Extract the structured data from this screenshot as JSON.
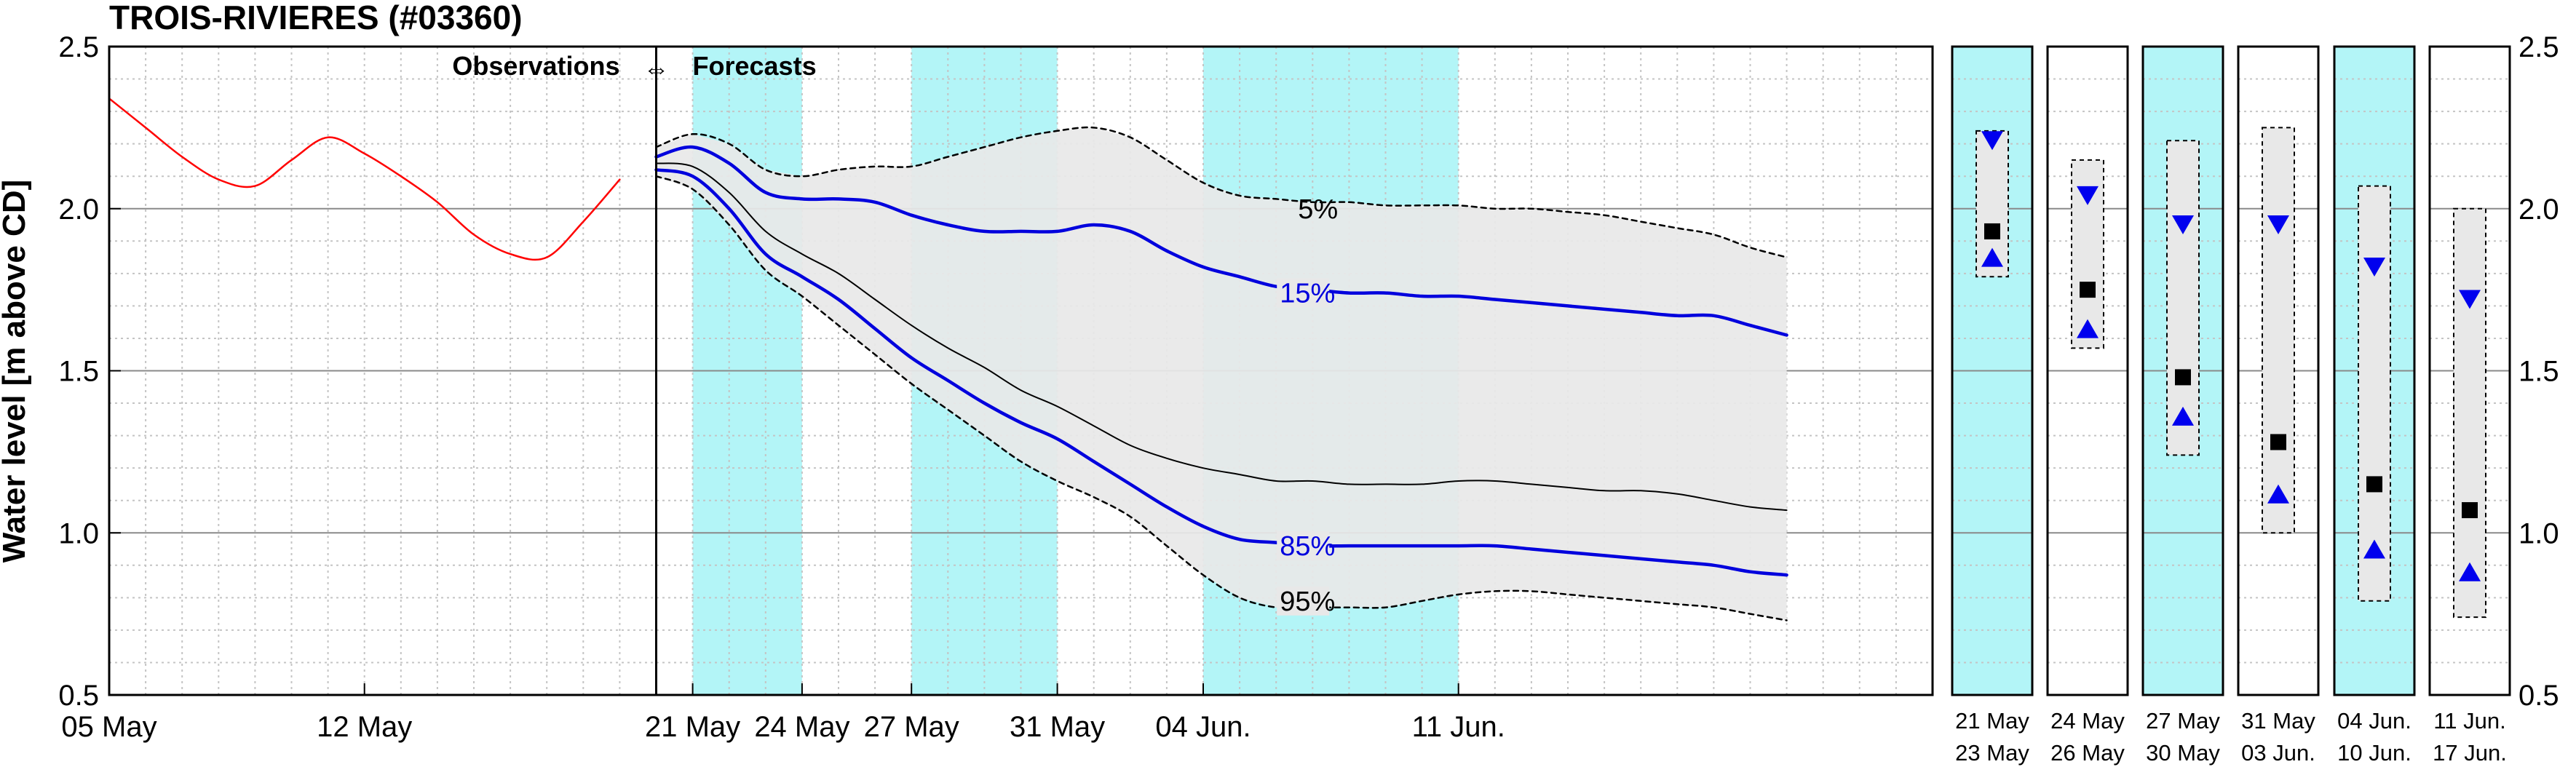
{
  "chart_data": {
    "type": "line",
    "title": "TROIS-RIVIERES (#03360)",
    "ylabel": "Water level [m above CD]",
    "ylim": [
      0.5,
      2.5
    ],
    "yticks": [
      "0.5",
      "1.0",
      "1.5",
      "2.0",
      "2.5"
    ],
    "ytick_values": [
      0.5,
      1.0,
      1.5,
      2.0,
      2.5
    ],
    "x_unit": "days since 05 May",
    "xlim": [
      0,
      50
    ],
    "xticks": [
      {
        "x": 0,
        "label": "05 May"
      },
      {
        "x": 7,
        "label": "12 May"
      },
      {
        "x": 16,
        "label": "21 May"
      },
      {
        "x": 19,
        "label": "24 May"
      },
      {
        "x": 22,
        "label": "27 May"
      },
      {
        "x": 26,
        "label": "31 May"
      },
      {
        "x": 30,
        "label": "04 Jun."
      },
      {
        "x": 37,
        "label": "11 Jun."
      }
    ],
    "obs_forecast_divider_x": 15,
    "annotation": {
      "left": "Observations",
      "arrow": "⇔",
      "right": "Forecasts"
    },
    "shaded_periods": [
      [
        16,
        19
      ],
      [
        22,
        26
      ],
      [
        30,
        37
      ]
    ],
    "colors": {
      "observations": "#ff0000",
      "percentile_15_85": "#0000dd",
      "median": "#000000",
      "band_fill": "#e8e8e8",
      "period_shade": "#b3f5f7",
      "marker_up_down": "#0000ee",
      "marker_square": "#000000"
    },
    "series": [
      {
        "name": "Observations",
        "x": [
          0,
          1,
          2,
          3,
          4,
          5,
          6,
          7,
          8,
          9,
          10,
          11,
          12,
          13,
          14
        ],
        "values": [
          2.34,
          2.25,
          2.16,
          2.09,
          2.07,
          2.15,
          2.22,
          2.17,
          2.1,
          2.02,
          1.92,
          1.86,
          1.85,
          1.96,
          2.09
        ]
      },
      {
        "name": "5%",
        "x": [
          15,
          16,
          17,
          18,
          19,
          20,
          21,
          22,
          23,
          24,
          25,
          26,
          27,
          28,
          29,
          30,
          31,
          32,
          33,
          34,
          35,
          36,
          37,
          38,
          39,
          40,
          41,
          42,
          43,
          44,
          45,
          46
        ],
        "values": [
          2.19,
          2.23,
          2.2,
          2.12,
          2.1,
          2.12,
          2.13,
          2.13,
          2.16,
          2.19,
          2.22,
          2.24,
          2.25,
          2.22,
          2.15,
          2.08,
          2.04,
          2.03,
          2.02,
          2.02,
          2.01,
          2.01,
          2.01,
          2.0,
          2.0,
          1.99,
          1.98,
          1.96,
          1.94,
          1.92,
          1.88,
          1.85
        ]
      },
      {
        "name": "15%",
        "x": [
          15,
          16,
          17,
          18,
          19,
          20,
          21,
          22,
          23,
          24,
          25,
          26,
          27,
          28,
          29,
          30,
          31,
          32,
          33,
          34,
          35,
          36,
          37,
          38,
          39,
          40,
          41,
          42,
          43,
          44,
          45,
          46
        ],
        "values": [
          2.16,
          2.19,
          2.14,
          2.05,
          2.03,
          2.03,
          2.02,
          1.98,
          1.95,
          1.93,
          1.93,
          1.93,
          1.95,
          1.93,
          1.87,
          1.82,
          1.79,
          1.76,
          1.75,
          1.74,
          1.74,
          1.73,
          1.73,
          1.72,
          1.71,
          1.7,
          1.69,
          1.68,
          1.67,
          1.67,
          1.64,
          1.61
        ]
      },
      {
        "name": "Median",
        "x": [
          15,
          16,
          17,
          18,
          19,
          20,
          21,
          22,
          23,
          24,
          25,
          26,
          27,
          28,
          29,
          30,
          31,
          32,
          33,
          34,
          35,
          36,
          37,
          38,
          39,
          40,
          41,
          42,
          43,
          44,
          45,
          46
        ],
        "values": [
          2.14,
          2.13,
          2.05,
          1.93,
          1.86,
          1.8,
          1.72,
          1.64,
          1.57,
          1.51,
          1.44,
          1.39,
          1.33,
          1.27,
          1.23,
          1.2,
          1.18,
          1.16,
          1.16,
          1.15,
          1.15,
          1.15,
          1.16,
          1.16,
          1.15,
          1.14,
          1.13,
          1.13,
          1.12,
          1.1,
          1.08,
          1.07
        ]
      },
      {
        "name": "85%",
        "x": [
          15,
          16,
          17,
          18,
          19,
          20,
          21,
          22,
          23,
          24,
          25,
          26,
          27,
          28,
          29,
          30,
          31,
          32,
          33,
          34,
          35,
          36,
          37,
          38,
          39,
          40,
          41,
          42,
          43,
          44,
          45,
          46
        ],
        "values": [
          2.12,
          2.1,
          2.0,
          1.86,
          1.79,
          1.72,
          1.63,
          1.54,
          1.47,
          1.4,
          1.34,
          1.29,
          1.22,
          1.15,
          1.08,
          1.02,
          0.98,
          0.97,
          0.96,
          0.96,
          0.96,
          0.96,
          0.96,
          0.96,
          0.95,
          0.94,
          0.93,
          0.92,
          0.91,
          0.9,
          0.88,
          0.87
        ]
      },
      {
        "name": "95%",
        "x": [
          15,
          16,
          17,
          18,
          19,
          20,
          21,
          22,
          23,
          24,
          25,
          26,
          27,
          28,
          29,
          30,
          31,
          32,
          33,
          34,
          35,
          36,
          37,
          38,
          39,
          40,
          41,
          42,
          43,
          44,
          45,
          46
        ],
        "values": [
          2.1,
          2.06,
          1.95,
          1.81,
          1.73,
          1.64,
          1.55,
          1.46,
          1.38,
          1.3,
          1.22,
          1.16,
          1.11,
          1.05,
          0.96,
          0.87,
          0.8,
          0.77,
          0.77,
          0.77,
          0.77,
          0.79,
          0.81,
          0.82,
          0.82,
          0.81,
          0.8,
          0.79,
          0.78,
          0.77,
          0.75,
          0.73
        ]
      }
    ],
    "percentile_labels": [
      {
        "text": "5%",
        "x": 32.6,
        "y": 2.0,
        "color": "#000000"
      },
      {
        "text": "15%",
        "x": 32.1,
        "y": 1.74,
        "color": "#0000dd"
      },
      {
        "text": "85%",
        "x": 32.1,
        "y": 0.96,
        "color": "#0000dd"
      },
      {
        "text": "95%",
        "x": 32.1,
        "y": 0.79,
        "color": "#000000"
      }
    ],
    "period_panels": [
      {
        "date_top": "21 May",
        "date_bottom": "23 May",
        "shaded": true,
        "box_top": 2.24,
        "box_bottom": 1.79,
        "up": 2.21,
        "median": 1.93,
        "down": 1.85
      },
      {
        "date_top": "24 May",
        "date_bottom": "26 May",
        "shaded": false,
        "box_top": 2.15,
        "box_bottom": 1.57,
        "up": 2.04,
        "median": 1.75,
        "down": 1.63
      },
      {
        "date_top": "27 May",
        "date_bottom": "30 May",
        "shaded": true,
        "box_top": 2.21,
        "box_bottom": 1.24,
        "up": 1.95,
        "median": 1.48,
        "down": 1.36
      },
      {
        "date_top": "31 May",
        "date_bottom": "03 Jun.",
        "shaded": false,
        "box_top": 2.25,
        "box_bottom": 1.0,
        "up": 1.95,
        "median": 1.28,
        "down": 1.12
      },
      {
        "date_top": "04 Jun.",
        "date_bottom": "10 Jun.",
        "shaded": true,
        "box_top": 2.07,
        "box_bottom": 0.79,
        "up": 1.82,
        "median": 1.15,
        "down": 0.95
      },
      {
        "date_top": "11 Jun.",
        "date_bottom": "17 Jun.",
        "shaded": false,
        "box_top": 2.0,
        "box_bottom": 0.74,
        "up": 1.72,
        "median": 1.07,
        "down": 0.88
      }
    ],
    "right_axis": {
      "yticks": [
        "0.5",
        "1.0",
        "1.5",
        "2.0",
        "2.5"
      ]
    },
    "grid": true,
    "legend": "none"
  }
}
